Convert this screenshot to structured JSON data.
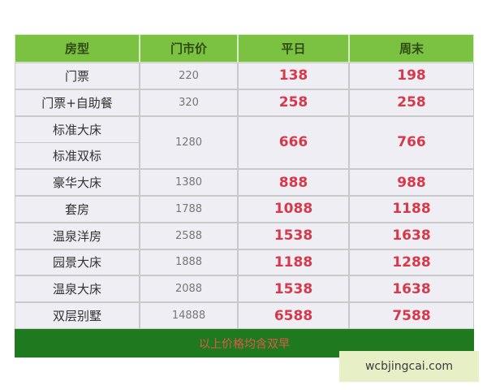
{
  "table": {
    "header": [
      "房型",
      "门市价",
      "平日",
      "周末"
    ],
    "rows": [
      {
        "room": [
          "门票"
        ],
        "list": "220",
        "weekday": "138",
        "weekend": "198"
      },
      {
        "room": [
          "门票+自助餐"
        ],
        "list": "320",
        "weekday": "258",
        "weekend": "258"
      },
      {
        "room": [
          "标准大床",
          "标准双标"
        ],
        "list": "1280",
        "weekday": "666",
        "weekend": "766"
      },
      {
        "room": [
          "豪华大床"
        ],
        "list": "1380",
        "weekday": "888",
        "weekend": "988"
      },
      {
        "room": [
          "套房"
        ],
        "list": "1788",
        "weekday": "1088",
        "weekend": "1188"
      },
      {
        "room": [
          "温泉洋房"
        ],
        "list": "2588",
        "weekday": "1538",
        "weekend": "1638"
      },
      {
        "room": [
          "园景大床"
        ],
        "list": "1888",
        "weekday": "1188",
        "weekend": "1288"
      },
      {
        "room": [
          "温泉大床"
        ],
        "list": "2088",
        "weekday": "1538",
        "weekend": "1638"
      },
      {
        "room": [
          "双层别墅"
        ],
        "list": "14888",
        "weekday": "6588",
        "weekend": "7588"
      }
    ],
    "footer": "以上价格均含双早"
  },
  "watermark": "wcbjingcai.com"
}
